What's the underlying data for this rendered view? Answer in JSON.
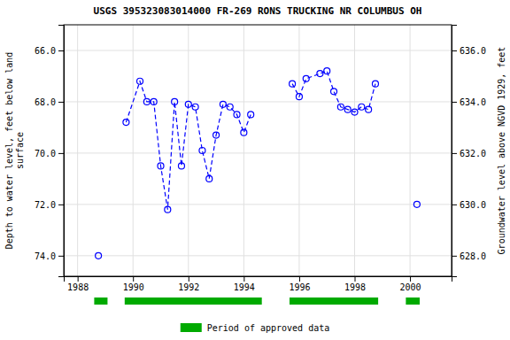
{
  "chart_data": {
    "type": "line",
    "title": "USGS 395323083014000 FR-269 RONS TRUCKING NR COLUMBUS OH",
    "y_label": "Depth to water level, feet below land\nsurface",
    "y2_label": "Groundwater level above NGVD 1929, feet",
    "xlim": [
      1987.5,
      2001.5
    ],
    "xticks": [
      1988,
      1990,
      1992,
      1994,
      1996,
      1998,
      2000
    ],
    "ylim": [
      74.8,
      65.0
    ],
    "yticks": [
      {
        "value": 66.0,
        "label": "66.0"
      },
      {
        "value": 68.0,
        "label": "68.0"
      },
      {
        "value": 70.0,
        "label": "70.0"
      },
      {
        "value": 72.0,
        "label": "72.0"
      },
      {
        "value": 74.0,
        "label": "74.0"
      }
    ],
    "y2lim": [
      627.2,
      637.0
    ],
    "y2ticks": [
      {
        "value": 636.0,
        "label": "636.0"
      },
      {
        "value": 634.0,
        "label": "634.0"
      },
      {
        "value": 632.0,
        "label": "632.0"
      },
      {
        "value": 630.0,
        "label": "630.0"
      },
      {
        "value": 628.0,
        "label": "628.0"
      }
    ],
    "grid": true,
    "series": [
      {
        "color": "blue",
        "marker": "circle",
        "line_style": "dashed",
        "x": [
          1988.75
        ],
        "values": [
          74.0
        ]
      },
      {
        "color": "blue",
        "marker": "circle",
        "line_style": "dashed",
        "x": [
          1989.75,
          1990.25,
          1990.5,
          1990.75,
          1991.0,
          1991.25,
          1991.5,
          1991.75,
          1992.0,
          1992.25,
          1992.5,
          1992.75,
          1993.0,
          1993.25,
          1993.5,
          1993.75,
          1994.0,
          1994.25
        ],
        "values": [
          68.8,
          67.2,
          68.0,
          68.0,
          70.5,
          72.2,
          68.0,
          70.5,
          68.1,
          68.2,
          69.9,
          71.0,
          69.3,
          68.1,
          68.2,
          68.5,
          69.2,
          68.5
        ]
      },
      {
        "color": "blue",
        "marker": "circle",
        "line_style": "dashed",
        "x": [
          1995.75,
          1996.0,
          1996.25,
          1996.75,
          1997.0,
          1997.25,
          1997.5,
          1997.75,
          1998.0,
          1998.25,
          1998.5,
          1998.75
        ],
        "values": [
          67.3,
          67.8,
          67.1,
          66.9,
          66.8,
          67.6,
          68.2,
          68.3,
          68.4,
          68.2,
          68.3,
          67.3
        ]
      },
      {
        "color": "blue",
        "marker": "circle",
        "line_style": "dashed",
        "x": [
          2000.25
        ],
        "values": [
          72.0
        ]
      }
    ],
    "spans": {
      "name": "Period of approved data",
      "color": "#00aa00",
      "ranges": [
        [
          1988.6,
          1989.08
        ],
        [
          1989.7,
          1994.65
        ],
        [
          1995.65,
          1998.85
        ],
        [
          1999.85,
          2000.35
        ]
      ]
    }
  }
}
